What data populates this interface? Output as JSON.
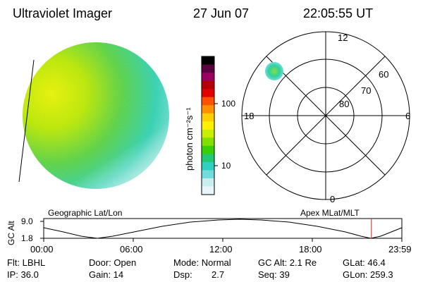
{
  "header": {
    "instrument": "Ultraviolet Imager",
    "date": "27 Jun 07",
    "time": "22:05:55 UT"
  },
  "colorbar": {
    "label": "photon cm⁻²s⁻¹",
    "ticks": [
      "100",
      "10"
    ],
    "colors": [
      "#000000",
      "#5a0040",
      "#9a0060",
      "#b40000",
      "#e00000",
      "#ff5000",
      "#ff9000",
      "#ffd000",
      "#fff000",
      "#c8ee00",
      "#80e000",
      "#38d000",
      "#20c870",
      "#30d0c0",
      "#70dcdc",
      "#c8eef0",
      "#e8f6fa"
    ]
  },
  "polar": {
    "mlt_labels": [
      "12",
      "18",
      "6",
      "0"
    ],
    "mlat_labels": [
      "60",
      "70",
      "80"
    ]
  },
  "timeline": {
    "left_label": "Geographic Lat/Lon",
    "right_label": "Apex MLat/MLT",
    "y_axis_label": "GC Alt",
    "y_ticks": [
      "9.0",
      "1.8"
    ],
    "x_ticks": [
      "00:00",
      "06:00",
      "12:00",
      "18:00",
      "23:59"
    ],
    "current_fraction": 0.915,
    "marker_color": "#d02020"
  },
  "params": {
    "flt": "Flt: LBHL",
    "ip": "IP: 36.0",
    "door": "Door: Open",
    "gain": "Gain: 14",
    "mode": "Mode: Normal",
    "dsp_label": "Dsp:",
    "dsp_value": "2.7",
    "gc_alt": "GC Alt: 2.1 Re",
    "seq": "Seq: 39",
    "glat": "GLat: 46.4",
    "glon": "GLon: 259.3"
  }
}
